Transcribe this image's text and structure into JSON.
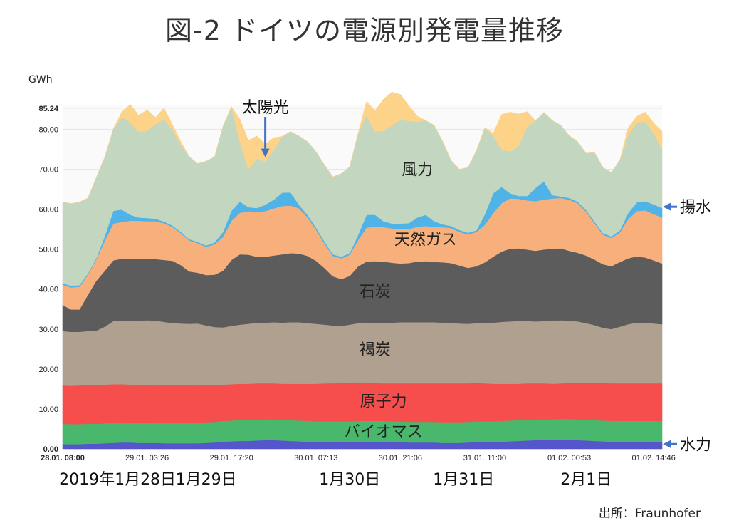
{
  "title": "図-2 ドイツの電源別発電量推移",
  "source": "出所：Fraunhofer",
  "chart_data": {
    "type": "area",
    "ylabel": "GWh",
    "ylim": [
      0,
      85.24
    ],
    "yticks": [
      {
        "value": 0,
        "label": "0.00"
      },
      {
        "value": 10,
        "label": "10.00"
      },
      {
        "value": 20,
        "label": "20.00"
      },
      {
        "value": 30,
        "label": "30.00"
      },
      {
        "value": 40,
        "label": "40.00"
      },
      {
        "value": 50,
        "label": "50.00"
      },
      {
        "value": 60,
        "label": "60.00"
      },
      {
        "value": 70,
        "label": "70.00"
      },
      {
        "value": 80,
        "label": "80.00"
      },
      {
        "value": 85.24,
        "label": "85.24"
      }
    ],
    "xticks": [
      {
        "index": 0,
        "label": "28.01. 08:00"
      },
      {
        "index": 10,
        "label": "29.01. 03:26"
      },
      {
        "index": 20,
        "label": "29.01. 17:20"
      },
      {
        "index": 30,
        "label": "30.01. 07:13"
      },
      {
        "index": 40,
        "label": "30.01. 21:06"
      },
      {
        "index": 50,
        "label": "31.01. 11:00"
      },
      {
        "index": 60,
        "label": "01.02. 00:53"
      },
      {
        "index": 70,
        "label": "01.02. 14:46"
      }
    ],
    "date_labels": [
      {
        "index": 6.5,
        "label": "2019年1月28日"
      },
      {
        "index": 17,
        "label": "1月29日"
      },
      {
        "index": 34,
        "label": "1月30日"
      },
      {
        "index": 47.5,
        "label": "1月31日"
      },
      {
        "index": 62,
        "label": "2月1日"
      }
    ],
    "series": [
      {
        "name": "水力",
        "color": "#5555cc",
        "values": [
          1.2,
          1.2,
          1.2,
          1.3,
          1.3,
          1.4,
          1.5,
          1.6,
          1.6,
          1.5,
          1.5,
          1.5,
          1.4,
          1.4,
          1.4,
          1.4,
          1.4,
          1.5,
          1.6,
          1.8,
          1.9,
          2,
          2,
          2.1,
          2.2,
          2.2,
          2.1,
          2,
          1.9,
          1.8,
          1.7,
          1.7,
          1.7,
          1.7,
          1.7,
          1.8,
          1.8,
          1.8,
          1.8,
          1.7,
          1.7,
          1.6,
          1.6,
          1.6,
          1.6,
          1.5,
          1.5,
          1.5,
          1.6,
          1.7,
          1.7,
          1.7,
          1.8,
          1.9,
          2,
          2.1,
          2.2,
          2.2,
          2.2,
          2.3,
          2.3,
          2.2,
          2.1,
          2,
          1.9,
          1.8,
          1.8,
          1.8,
          1.8,
          1.8,
          1.8,
          1.8
        ]
      },
      {
        "name": "バイオマス",
        "color": "#4ab86c",
        "values": [
          5.1,
          5,
          5,
          5,
          5,
          5,
          5,
          5,
          5,
          5.1,
          5.1,
          5.1,
          5.1,
          5.1,
          5.1,
          5.1,
          5.2,
          5.2,
          5.2,
          5.2,
          5.2,
          5.2,
          5.2,
          5.2,
          5.2,
          5.2,
          5.2,
          5.2,
          5.2,
          5.2,
          5.2,
          5.2,
          5.2,
          5.2,
          5.2,
          5.2,
          5.2,
          5.2,
          5.2,
          5.2,
          5.2,
          5.2,
          5.2,
          5.2,
          5.2,
          5.2,
          5.2,
          5.2,
          5.2,
          5.2,
          5.2,
          5.2,
          5.2,
          5.2,
          5.2,
          5.2,
          5.2,
          5.2,
          5.2,
          5.2,
          5.2,
          5.2,
          5.2,
          5.2,
          5.2,
          5.2,
          5.2,
          5.2,
          5.2,
          5.2,
          5.2,
          5.2
        ]
      },
      {
        "name": "原子力",
        "color": "#f64d4d",
        "values": [
          9.6,
          9.6,
          9.7,
          9.7,
          9.7,
          9.7,
          9.7,
          9.6,
          9.5,
          9.5,
          9.5,
          9.5,
          9.5,
          9.5,
          9.5,
          9.5,
          9.5,
          9.4,
          9.3,
          9.1,
          9.1,
          9.1,
          9.1,
          9.1,
          9,
          9,
          9,
          9.1,
          9.2,
          9.3,
          9.4,
          9.5,
          9.5,
          9.6,
          9.6,
          9.7,
          9.6,
          9.5,
          9.4,
          9.5,
          9.5,
          9.6,
          9.6,
          9.6,
          9.6,
          9.7,
          9.7,
          9.7,
          9.6,
          9.6,
          9.5,
          9.4,
          9.3,
          9.2,
          9.1,
          9.1,
          9,
          9,
          8.9,
          8.9,
          9,
          9.1,
          9.2,
          9.3,
          9.4,
          9.4,
          9.4,
          9.4,
          9.4,
          9.4,
          9.4,
          9.4
        ]
      },
      {
        "name": "褐炭",
        "color": "#b0a090",
        "values": [
          13.6,
          13.5,
          13.4,
          13.5,
          13.6,
          14.5,
          15.8,
          15.8,
          15.9,
          16,
          16.1,
          16,
          15.8,
          15.5,
          15.4,
          15.3,
          15.3,
          14.8,
          14.4,
          14.3,
          14.6,
          14.8,
          15,
          15.2,
          15.2,
          15.3,
          15.3,
          15.4,
          15.4,
          15.2,
          15,
          14.7,
          14.5,
          14.3,
          14.6,
          14.8,
          15,
          15.1,
          15.2,
          15.2,
          15.3,
          15.3,
          15.3,
          15.3,
          15.3,
          15.2,
          15.1,
          15,
          14.9,
          15,
          15.1,
          15.3,
          15.5,
          15.6,
          15.7,
          15.6,
          15.5,
          15.6,
          15.8,
          15.8,
          15.6,
          15.4,
          15,
          14.5,
          13.8,
          13.6,
          14.2,
          14.8,
          15.2,
          15.2,
          15,
          14.8
        ]
      },
      {
        "name": "石炭",
        "color": "#5c5c5c",
        "values": [
          6.5,
          5.6,
          5.6,
          9.1,
          12.5,
          14,
          15.2,
          15.6,
          15.5,
          15.4,
          15.3,
          15.4,
          15.5,
          15.6,
          14.6,
          13.1,
          12.7,
          12.6,
          13.1,
          14.2,
          16.5,
          17.6,
          17.3,
          16.5,
          16.5,
          16.7,
          17.1,
          17.3,
          17.2,
          16.8,
          15.8,
          14.2,
          12.3,
          11.7,
          12.2,
          14.2,
          15.3,
          15.4,
          15.3,
          15,
          14.7,
          14.8,
          15.2,
          15.3,
          15.1,
          15.1,
          15,
          14.5,
          14,
          14.2,
          15.2,
          16.5,
          17.6,
          18.2,
          18.2,
          17.9,
          17.7,
          17.9,
          18,
          18,
          17.5,
          17.2,
          16.9,
          16.4,
          15.9,
          15.7,
          16.2,
          16.5,
          16.6,
          16.3,
          15.8,
          15.2
        ]
      },
      {
        "name": "天然ガス",
        "color": "#f7b07c",
        "values": [
          5.1,
          5.5,
          5.7,
          5,
          5.4,
          7.5,
          9.2,
          9.2,
          9.6,
          9.6,
          9.5,
          9.5,
          9.2,
          8.5,
          8,
          7.8,
          7.4,
          7.1,
          7.6,
          8.5,
          9.8,
          10.4,
          10.9,
          11.2,
          11.4,
          11.8,
          12.1,
          11.9,
          11.3,
          9.7,
          7.8,
          6.2,
          5.1,
          5.2,
          5.3,
          6.6,
          8.5,
          8.6,
          8.6,
          8.6,
          8.7,
          8.5,
          8.7,
          8.8,
          8.7,
          8.8,
          8.8,
          8.4,
          8.4,
          8.6,
          9.4,
          10.9,
          12.1,
          12.6,
          12.4,
          12.3,
          12.4,
          12.5,
          12.6,
          12.6,
          12.8,
          12.4,
          11,
          9.1,
          7.4,
          7.1,
          7.4,
          9.9,
          11.3,
          11.8,
          11.6,
          11.5
        ]
      },
      {
        "name": "揚水",
        "color": "#4fb3e8",
        "values": [
          0.4,
          0.4,
          0.4,
          0.3,
          0.3,
          1.2,
          3.2,
          3.1,
          1.5,
          0.8,
          0.8,
          0.6,
          0.4,
          0.3,
          0.3,
          0.3,
          0.3,
          0.3,
          0.5,
          1.2,
          2.5,
          2.8,
          1,
          1,
          1.6,
          2.2,
          3.3,
          3.3,
          0.9,
          0.6,
          0.5,
          0.5,
          0.4,
          0.4,
          0.4,
          1.3,
          3.2,
          3,
          1.5,
          1.2,
          1.3,
          1.5,
          2.3,
          2.8,
          1.5,
          0.7,
          0.5,
          0.5,
          0.4,
          0.4,
          2.6,
          5,
          4.1,
          1.3,
          0.7,
          1.1,
          3.3,
          4.6,
          0.8,
          0.4,
          0.4,
          0.4,
          0.4,
          0.4,
          0.4,
          0.4,
          0.5,
          1.5,
          2.2,
          2.3,
          2.4,
          2.4
        ]
      },
      {
        "name": "風力",
        "color": "#c3d6c0",
        "values": [
          20.3,
          20.6,
          20.8,
          18.9,
          20.2,
          19.8,
          20.5,
          23.1,
          23.2,
          21.5,
          21.8,
          23.7,
          25.6,
          24,
          21.8,
          20.6,
          19.6,
          21.1,
          21.4,
          26.5,
          26,
          14.8,
          9.6,
          12.3,
          10.8,
          12.4,
          14.1,
          15.2,
          17.2,
          18.3,
          19,
          19.1,
          19.4,
          20.8,
          21.6,
          25.4,
          24.9,
          20.8,
          22.6,
          24.5,
          25.9,
          25.6,
          24,
          23.6,
          24,
          20.8,
          16.4,
          15.2,
          16.3,
          19.9,
          21.7,
          14.3,
          9.3,
          10.4,
          12.5,
          17.4,
          16.8,
          17.2,
          18.7,
          17.8,
          15.6,
          15,
          14.2,
          17.3,
          16.4,
          16,
          17.6,
          19.6,
          19.9,
          20,
          17.8,
          14.7
        ]
      },
      {
        "name": "太陽光",
        "color": "#fdd38a",
        "values": [
          0,
          0,
          0,
          0,
          0,
          0,
          0,
          1.3,
          4.4,
          4.1,
          5.2,
          1.6,
          2.8,
          1.3,
          0.8,
          0,
          0,
          0,
          0,
          0,
          0,
          5.8,
          7.1,
          5.7,
          4.4,
          3.1,
          0,
          0,
          0,
          0,
          0,
          0,
          0,
          0,
          0,
          0,
          3.5,
          5.2,
          7.9,
          8.4,
          6.4,
          3.8,
          1.4,
          0,
          0,
          0,
          0,
          0,
          0,
          0,
          0,
          0.7,
          8.8,
          9.9,
          8,
          3.7,
          0,
          0,
          0,
          0,
          0,
          0,
          0,
          0,
          0,
          0,
          0,
          1.7,
          1.6,
          2.3,
          2.6,
          4.4
        ]
      }
    ],
    "layer_labels": [
      {
        "name": "風力",
        "index": 42,
        "value": 70
      },
      {
        "name": "天然ガス",
        "index": 43,
        "value": 52.5
      },
      {
        "name": "石炭",
        "index": 37,
        "value": 39.5
      },
      {
        "name": "褐炭",
        "index": 37,
        "value": 25
      },
      {
        "name": "原子力",
        "index": 38,
        "value": 12
      },
      {
        "name": "バイオマス",
        "index": 38,
        "value": 4.5
      }
    ],
    "callouts": [
      {
        "name": "太陽光",
        "target_index": 24,
        "target_value": 73
      },
      {
        "name": "揚水",
        "target_index": 71,
        "target_value": 60.6
      },
      {
        "name": "水力",
        "target_index": 71,
        "target_value": 1.2
      }
    ],
    "grid": true,
    "legend": "none"
  }
}
